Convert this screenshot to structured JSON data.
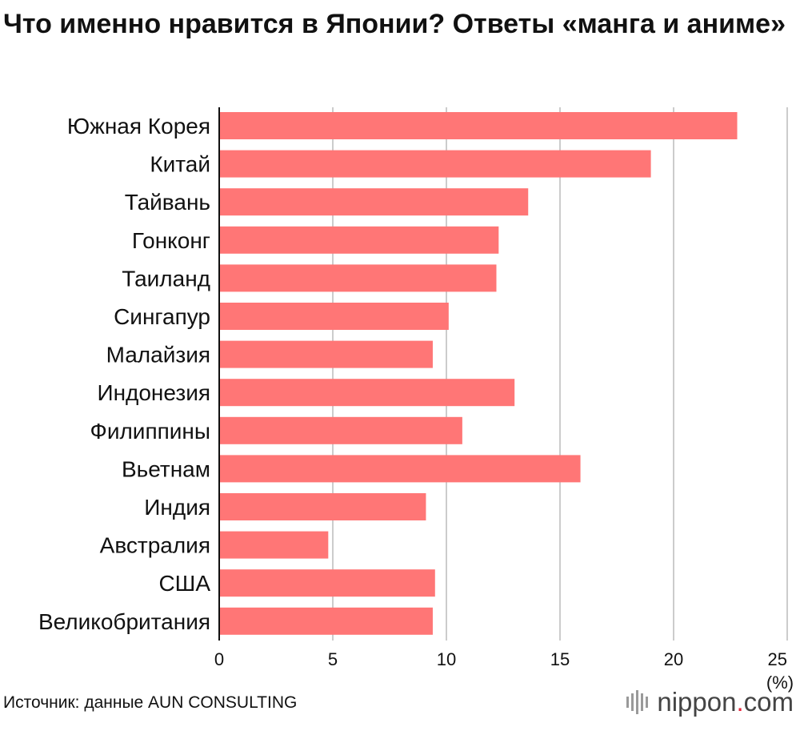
{
  "chart_data": {
    "type": "bar",
    "orientation": "horizontal",
    "title": "Что именно нравится в Японии? Ответы «манга и аниме»",
    "categories": [
      "Южная Корея",
      "Китай",
      "Тайвань",
      "Гонконг",
      "Таиланд",
      "Сингапур",
      "Малайзия",
      "Индонезия",
      "Филиппины",
      "Вьетнам",
      "Индия",
      "Австралия",
      "США",
      "Великобритания"
    ],
    "values": [
      22.8,
      19.0,
      13.6,
      12.3,
      12.2,
      10.1,
      9.4,
      13.0,
      10.7,
      15.9,
      9.1,
      4.8,
      9.5,
      9.4
    ],
    "xlim": [
      0,
      25
    ],
    "xticks": [
      "0",
      "5",
      "10",
      "15",
      "20",
      "25"
    ],
    "unit_label": "(%)",
    "grid": true,
    "bar_color": "#ff7676"
  },
  "footer": {
    "source": "Источник: данные AUN CONSULTING",
    "logo_name": "nippon",
    "logo_dot": ".",
    "logo_tld": "com",
    "logo_accent": "#e8253b"
  }
}
